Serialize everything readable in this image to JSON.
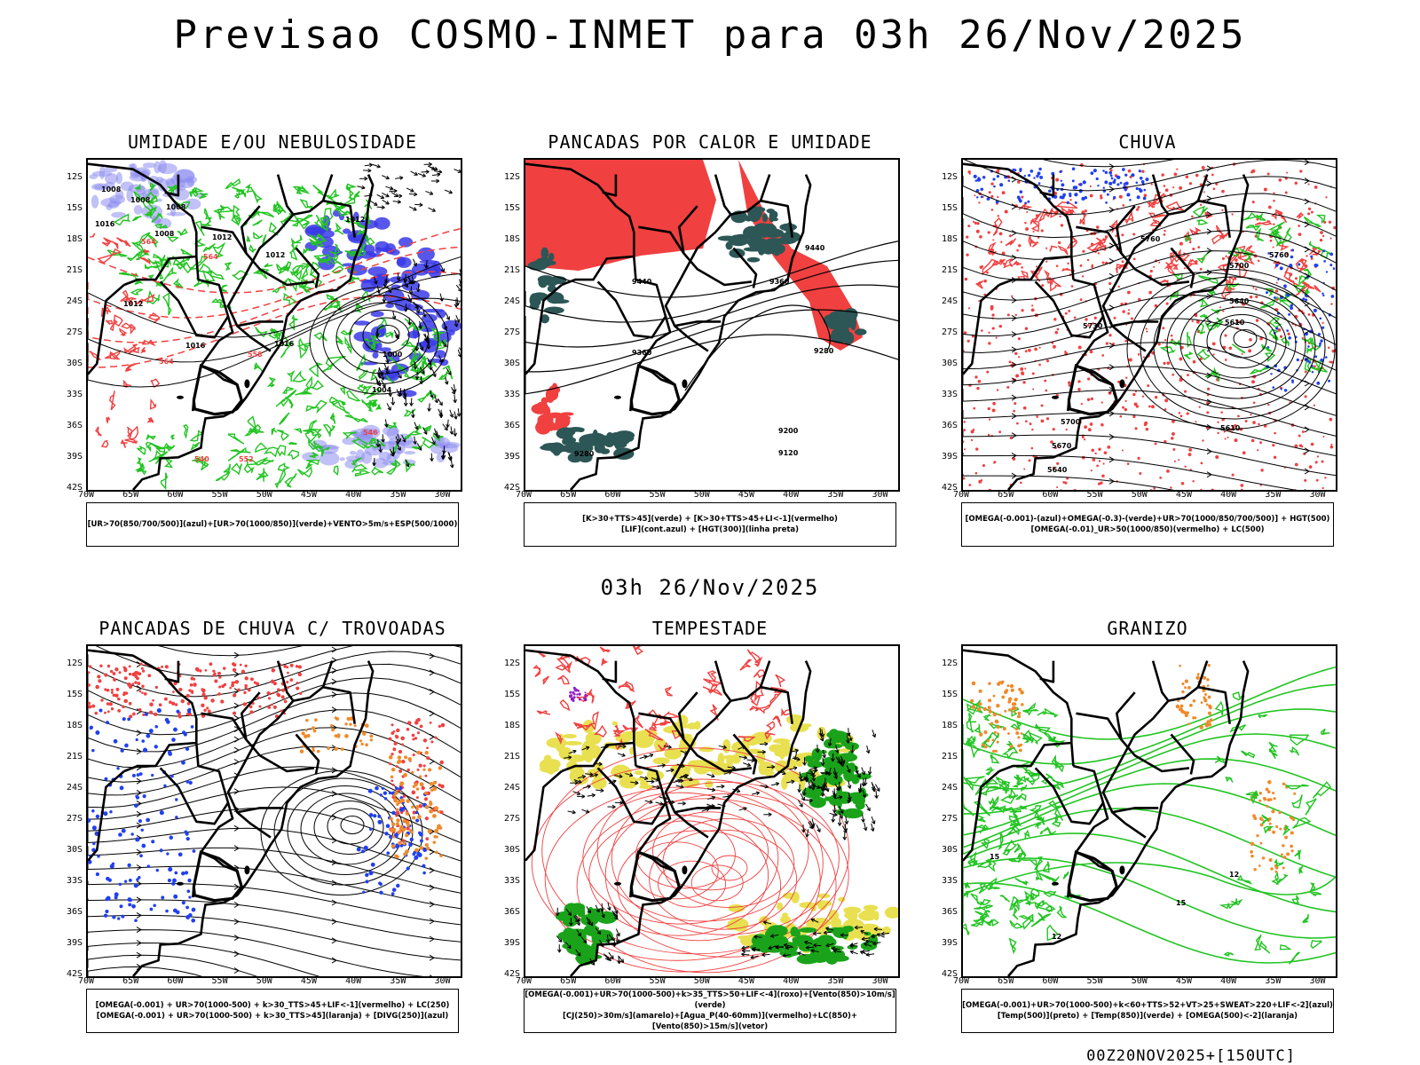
{
  "header": {
    "title": "Previsao COSMO-INMET  para 03h 26/Nov/2025"
  },
  "mid_title": "03h 26/Nov/2025",
  "footer": "00Z20NOV2025+[150UTC]",
  "axes": {
    "lat_labels": [
      "12S",
      "15S",
      "18S",
      "21S",
      "24S",
      "27S",
      "30S",
      "33S",
      "36S",
      "39S",
      "42S"
    ],
    "lon_labels": [
      "70W",
      "65W",
      "60W",
      "55W",
      "50W",
      "45W",
      "40W",
      "35W",
      "30W"
    ]
  },
  "colors": {
    "rh_blue": "#8e8ef0",
    "rh_dark": "#3a3ae8",
    "green": "#22c422",
    "red": "#f04040",
    "teal": "#2d5656",
    "yellow": "#e8e050",
    "orange": "#f08a2a",
    "blue_dot": "#2040f0",
    "purple": "#9020c0"
  },
  "panels": [
    {
      "title": "UMIDADE E/OU NEBULOSIDADE",
      "legend": [
        "[UR>70(850/700/500)](azul)+[UR>70(1000/850)](verde)+VENTO>5m/s+ESP(500/1000)"
      ],
      "labels": [
        "1008",
        "1008",
        "1008",
        "1012",
        "1012",
        "1016",
        "1016",
        "1008",
        "1012",
        "1016",
        "1012",
        "564",
        "564",
        "564",
        "558",
        "552",
        "546",
        "540",
        "1000",
        "1004"
      ]
    },
    {
      "title": "PANCADAS POR CALOR E UMIDADE",
      "legend": [
        "[K>30+TTS>45](verde) + [K>30+TTS>45+LI<-1](vermelho)",
        "[LIF](cont.azul) + [HGT(300)](linha preta)"
      ],
      "labels": [
        "9440",
        "9440",
        "9360",
        "9360",
        "9280",
        "9200",
        "9120",
        "9280"
      ]
    },
    {
      "title": "CHUVA",
      "legend": [
        "[OMEGA(-0.001)-(azul)+OMEGA(-0.3)-(verde)+UR>70(1000/850/700/500)] + HGT(500)",
        "[OMEGA(-0.01)_UR>50(1000/850)(vermelho) + LC(500)"
      ],
      "labels": [
        "5760",
        "5760",
        "5700",
        "5640",
        "5610",
        "5730",
        "5700",
        "5670",
        "5640",
        "5610"
      ]
    },
    {
      "title": "PANCADAS DE CHUVA C/ TROVOADAS",
      "legend": [
        "[OMEGA(-0.001) + UR>70(1000-500) + k>30_TTS>45+LIF<-1](vermelho) + LC(250)",
        "[OMEGA(-0.001) + UR>70(1000-500) + k>30_TTS>45](laranja) + [DIVG(250)](azul)"
      ],
      "labels": []
    },
    {
      "title": "TEMPESTADE",
      "legend": [
        "[OMEGA(-0.001)+UR>70(1000-500)+k>35_TTS>50+LIF<-4](roxo)+[Vento(850)>10m/s](verde)",
        "[CJ(250)>30m/s](amarelo)+[Agua_P(40-60mm)](vermelho)+LC(850)+[Vento(850)>15m/s](vetor)"
      ],
      "labels": []
    },
    {
      "title": "GRANIZO",
      "legend": [
        "[OMEGA(-0.001)+UR>70(1000-500)+k<60+TTS>52+VT>25+SWEAT>220+LIF<-2](azul)",
        "[Temp(500)](preto) + [Temp(850)](verde) + [OMEGA(500)<-2](laranja)"
      ],
      "labels": [
        "15",
        "12",
        "15",
        "12"
      ]
    }
  ]
}
